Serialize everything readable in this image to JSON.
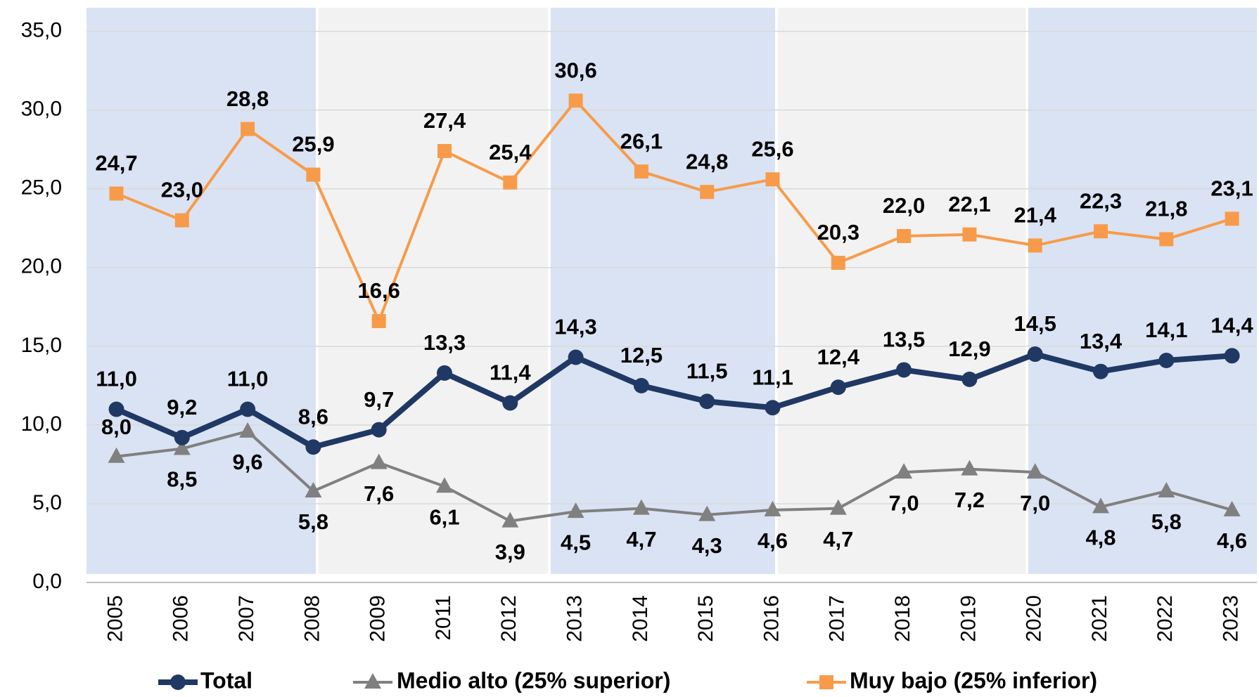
{
  "chart_data": {
    "type": "line",
    "categories": [
      "2005",
      "2006",
      "2007",
      "2008",
      "2009",
      "2011",
      "2012",
      "2013",
      "2014",
      "2015",
      "2016",
      "2017",
      "2018",
      "2019",
      "2020",
      "2021",
      "2022",
      "2023"
    ],
    "series": [
      {
        "name": "Total",
        "color": "#203864",
        "marker": "circle",
        "values": [
          11.0,
          9.2,
          11.0,
          8.6,
          9.7,
          13.3,
          11.4,
          14.3,
          12.5,
          11.5,
          11.1,
          12.4,
          13.5,
          12.9,
          14.5,
          13.4,
          14.1,
          14.4
        ],
        "value_labels": [
          "11,0",
          "9,2",
          "11,0",
          "8,6",
          "9,7",
          "13,3",
          "11,4",
          "14,3",
          "12,5",
          "11,5",
          "11,1",
          "12,4",
          "13,5",
          "12,9",
          "14,5",
          "13,4",
          "14,1",
          "14,4"
        ]
      },
      {
        "name": "Medio alto (25% superior)",
        "color": "#808080",
        "marker": "triangle",
        "values": [
          8.0,
          8.5,
          9.6,
          5.8,
          7.6,
          6.1,
          3.9,
          4.5,
          4.7,
          4.3,
          4.6,
          4.7,
          7.0,
          7.2,
          7.0,
          4.8,
          5.8,
          4.6
        ],
        "value_labels": [
          "8,0",
          "8,5",
          "9,6",
          "5,8",
          "7,6",
          "6,1",
          "3,9",
          "4,5",
          "4,7",
          "4,3",
          "4,6",
          "4,7",
          "7,0",
          "7,2",
          "7,0",
          "4,8",
          "5,8",
          "4,6"
        ]
      },
      {
        "name": "Muy bajo (25% inferior)",
        "color": "#f79b4a",
        "marker": "square",
        "values": [
          24.7,
          23.0,
          28.8,
          25.9,
          16.6,
          27.4,
          25.4,
          30.6,
          26.1,
          24.8,
          25.6,
          20.3,
          22.0,
          22.1,
          21.4,
          22.3,
          21.8,
          23.1
        ],
        "value_labels": [
          "24,7",
          "23,0",
          "28,8",
          "25,9",
          "16,6",
          "27,4",
          "25,4",
          "30,6",
          "26,1",
          "24,8",
          "25,6",
          "20,3",
          "22,0",
          "22,1",
          "21,4",
          "22,3",
          "21,8",
          "23,1"
        ]
      }
    ],
    "ylim": [
      0,
      36.5
    ],
    "yticks": [
      {
        "value": 0,
        "label": "0,0"
      },
      {
        "value": 5,
        "label": "5,0"
      },
      {
        "value": 10,
        "label": "10,0"
      },
      {
        "value": 15,
        "label": "15,0"
      },
      {
        "value": 20,
        "label": "20,0"
      },
      {
        "value": 25,
        "label": "25,0"
      },
      {
        "value": 30,
        "label": "30,0"
      },
      {
        "value": 35,
        "label": "35,0"
      }
    ],
    "grid": true,
    "legend": "bottom"
  }
}
